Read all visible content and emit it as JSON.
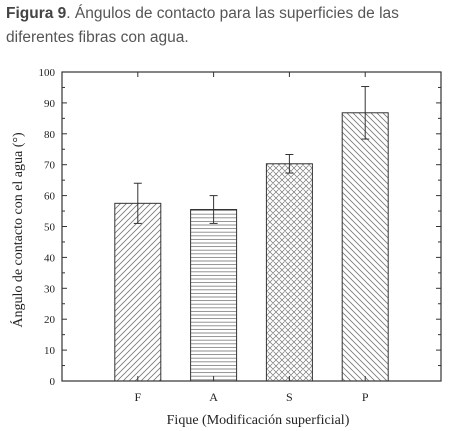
{
  "caption": {
    "label": "Figura 9",
    "text": ". Ángulos de contacto para las superficies de las diferentes fibras con agua."
  },
  "chart_data": {
    "type": "bar",
    "categories": [
      "F",
      "A",
      "S",
      "P"
    ],
    "values": [
      57.5,
      55.5,
      70.3,
      86.8
    ],
    "errors": [
      6.5,
      4.5,
      3.0,
      8.5
    ],
    "patterns": [
      "diagonal-forward",
      "horizontal",
      "crosshatch",
      "diagonal-back"
    ],
    "xlabel": "Fique (Modificación superficial)",
    "ylabel": "Ángulo de contacto con el agua (°)",
    "ylim": [
      0,
      100
    ],
    "yticks": [
      0,
      10,
      20,
      30,
      40,
      50,
      60,
      70,
      80,
      90,
      100
    ],
    "grid": false,
    "colors": {
      "stroke": "#333333",
      "pattern": "#666666"
    }
  }
}
